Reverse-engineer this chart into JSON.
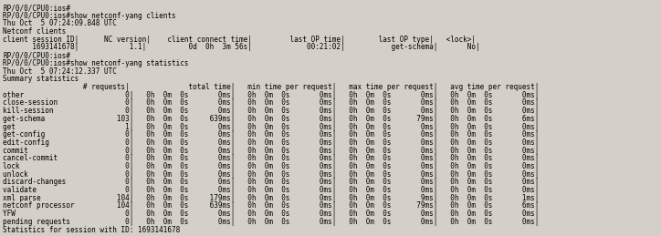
{
  "background_color": "#d4d0c8",
  "text_color": "#000000",
  "font_family": "monospace",
  "font_size": 5.5,
  "lines": [
    "RP/0/0/CPU0:ios#",
    "RP/0/0/CPU0:ios#show netconf-yang clients",
    "Thu Oct  5 07:24:09.848 UTC",
    "Netconf clients",
    "client session ID|      NC version|    client connect time|         last OP time|        last OP type|   <lock>|",
    "       1693141678|            1.1|          0d  0h  3m 56s|             00:21:02|           get-schema|       No|",
    "RP/0/0/CPU0:ios#",
    "RP/0/0/CPU0:ios#show netconf-yang statistics",
    "Thu Oct  5 07:24:12.337 UTC",
    "Summary statistics",
    "                   # requests|              total time|   min time per request|   max time per request|   avg time per request|",
    "other                        0|   0h  0m  0s       0ms|   0h  0m  0s       0ms|   0h  0m  0s       0ms|   0h  0m  0s       0ms|",
    "close-session                0|   0h  0m  0s       0ms|   0h  0m  0s       0ms|   0h  0m  0s       0ms|   0h  0m  0s       0ms|",
    "kill-session                 0|   0h  0m  0s       0ms|   0h  0m  0s       0ms|   0h  0m  0s       0ms|   0h  0m  0s       0ms|",
    "get-schema                 103|   0h  0m  0s     639ms|   0h  0m  0s       0ms|   0h  0m  0s      79ms|   0h  0m  0s       6ms|",
    "get                          1|   0h  0m  0s       0ms|   0h  0m  0s       0ms|   0h  0m  0s       0ms|   0h  0m  0s       0ms|",
    "get-config                   0|   0h  0m  0s       0ms|   0h  0m  0s       0ms|   0h  0m  0s       0ms|   0h  0m  0s       0ms|",
    "edit-config                  0|   0h  0m  0s       0ms|   0h  0m  0s       0ms|   0h  0m  0s       0ms|   0h  0m  0s       0ms|",
    "commit                       0|   0h  0m  0s       0ms|   0h  0m  0s       0ms|   0h  0m  0s       0ms|   0h  0m  0s       0ms|",
    "cancel-commit                0|   0h  0m  0s       0ms|   0h  0m  0s       0ms|   0h  0m  0s       0ms|   0h  0m  0s       0ms|",
    "lock                         0|   0h  0m  0s       0ms|   0h  0m  0s       0ms|   0h  0m  0s       0ms|   0h  0m  0s       0ms|",
    "unlock                       0|   0h  0m  0s       0ms|   0h  0m  0s       0ms|   0h  0m  0s       0ms|   0h  0m  0s       0ms|",
    "discard-changes              0|   0h  0m  0s       0ms|   0h  0m  0s       0ms|   0h  0m  0s       0ms|   0h  0m  0s       0ms|",
    "validate                     0|   0h  0m  0s       0ms|   0h  0m  0s       0ms|   0h  0m  0s       0ms|   0h  0m  0s       0ms|",
    "xml parse                  104|   0h  0m  0s     179ms|   0h  0m  0s       0ms|   0h  0m  0s       9ms|   0h  0m  0s       1ms|",
    "netconf processor          104|   0h  0m  0s     639ms|   0h  0m  0s       0ms|   0h  0m  0s      79ms|   0h  0m  0s       6ms|",
    "YFW                          0|   0h  0m  0s       0ms|   0h  0m  0s       0ms|   0h  0m  0s       0ms|   0h  0m  0s       0ms|",
    "pending requests             0|   0h  0m  0s       0ms|   0h  0m  0s       0ms|   0h  0m  0s       0ms|   0h  0m  0s       0ms|",
    "Statistics for session with ID: 1693141678"
  ]
}
